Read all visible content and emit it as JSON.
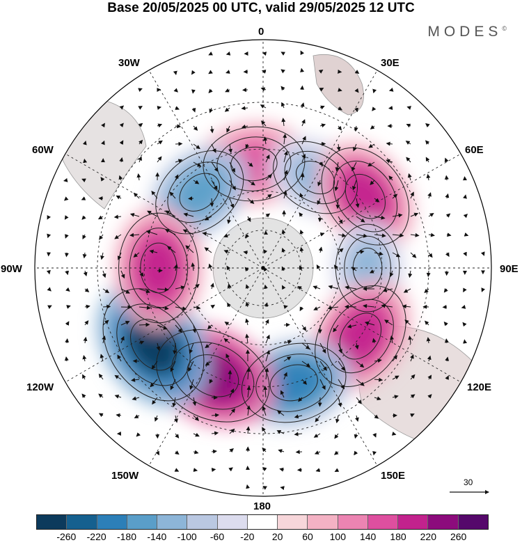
{
  "title": "Base 20/05/2025 00 UTC, valid 29/05/2025 12 UTC",
  "brand": {
    "text": "MODES",
    "mark": "©"
  },
  "longitude_labels": {
    "lon_0": "0",
    "lon_30e": "30E",
    "lon_60e": "60E",
    "lon_90e": "90E",
    "lon_120e": "120E",
    "lon_150e": "150E",
    "lon_180": "180",
    "lon_150w": "150W",
    "lon_120w": "120W",
    "lon_90w": "90W",
    "lon_60w": "60W",
    "lon_30w": "30W"
  },
  "vector_scale": {
    "label": "30"
  },
  "colorbar": {
    "ticks": [
      "-260",
      "-220",
      "-180",
      "-140",
      "-100",
      "-60",
      "-20",
      "20",
      "60",
      "100",
      "140",
      "180",
      "220",
      "260"
    ],
    "colors": [
      "#0c3a5c",
      "#15608f",
      "#2c7fb8",
      "#5a9ec9",
      "#8db5d8",
      "#bac8e2",
      "#dcdcee",
      "#ffffff",
      "#f7d6da",
      "#f4b2c4",
      "#ec84b2",
      "#de4f9f",
      "#c2228d",
      "#8c0b7c",
      "#55086b"
    ]
  },
  "map": {
    "projection": "south-polar-stereographic",
    "center_pole": "South Pole",
    "anomaly_centers": [
      {
        "lon": -5,
        "lat": -50,
        "value": 170
      },
      {
        "lon": -40,
        "lat": -52,
        "value": -150
      },
      {
        "lon": 30,
        "lat": -50,
        "value": -110
      },
      {
        "lon": 55,
        "lat": -43,
        "value": 190
      },
      {
        "lon": 90,
        "lat": -50,
        "value": -100
      },
      {
        "lon": 125,
        "lat": -45,
        "value": 210
      },
      {
        "lon": 165,
        "lat": -45,
        "value": -190
      },
      {
        "lon": -155,
        "lat": -45,
        "value": 250
      },
      {
        "lon": -125,
        "lat": -40,
        "value": -270
      },
      {
        "lon": -90,
        "lat": -50,
        "value": 210
      }
    ]
  }
}
